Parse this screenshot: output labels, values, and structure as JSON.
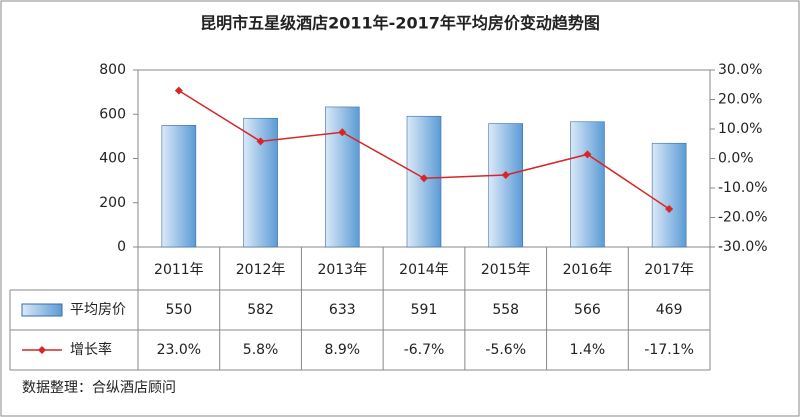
{
  "chart_data": {
    "type": "bar-line",
    "title": "昆明市五星级酒店2011年-2017年平均房价变动趋势图",
    "categories": [
      "2011年",
      "2012年",
      "2013年",
      "2014年",
      "2015年",
      "2016年",
      "2017年"
    ],
    "series": [
      {
        "name": "平均房价",
        "color": "#5b9bd5",
        "values": [
          550,
          582,
          633,
          591,
          558,
          566,
          469
        ]
      },
      {
        "name": "增长率",
        "color": "#d62728",
        "axis": "y2",
        "values": [
          23.0,
          5.8,
          8.9,
          -6.7,
          -5.6,
          1.4,
          -17.1
        ],
        "value_labels": [
          "23.0%",
          "5.8%",
          "8.9%",
          "-6.7%",
          "-5.6%",
          "1.4%",
          "-17.1%"
        ]
      }
    ],
    "ylim": [
      0,
      800
    ],
    "yticks": [
      0,
      200,
      400,
      600,
      800
    ],
    "y2lim": [
      -30,
      30
    ],
    "y2ticks": [
      {
        "value": -30,
        "label": "-30.0%"
      },
      {
        "value": -20,
        "label": "-20.0%"
      },
      {
        "value": -10,
        "label": "-10.0%"
      },
      {
        "value": 0,
        "label": "0.0%"
      },
      {
        "value": 10,
        "label": "10.0%"
      },
      {
        "value": 20,
        "label": "20.0%"
      },
      {
        "value": 30,
        "label": "30.0%"
      }
    ],
    "grid": false,
    "source": "数据整理：合纵酒店顾问"
  }
}
